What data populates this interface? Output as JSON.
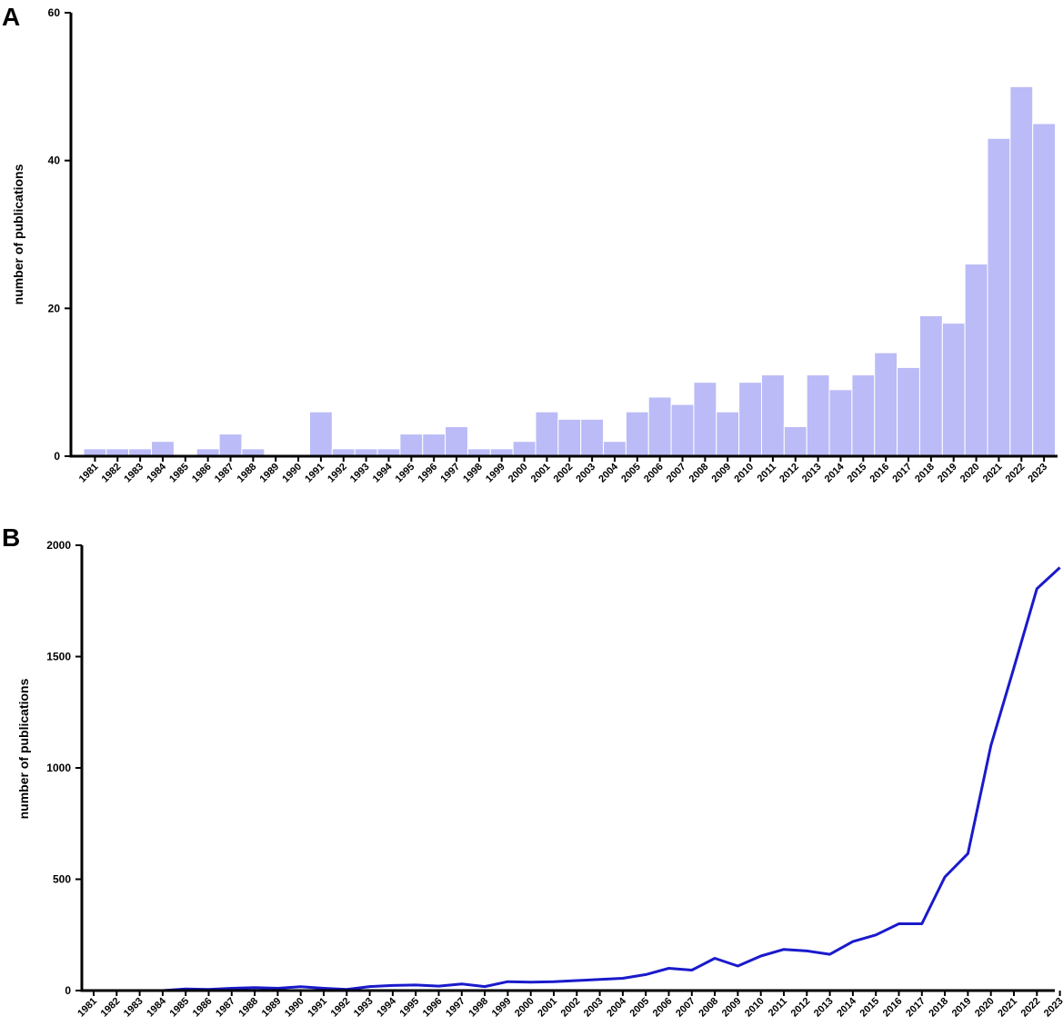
{
  "chart_data": [
    {
      "panel": "A",
      "type": "bar",
      "ylabel": "number of publications",
      "xlabel": "",
      "ylim": [
        0,
        60
      ],
      "yticks": [
        0,
        20,
        40,
        60
      ],
      "categories": [
        "1981",
        "1982",
        "1983",
        "1984",
        "1985",
        "1986",
        "1987",
        "1988",
        "1989",
        "1990",
        "1991",
        "1992",
        "1993",
        "1994",
        "1995",
        "1996",
        "1997",
        "1998",
        "1999",
        "2000",
        "2001",
        "2002",
        "2003",
        "2004",
        "2005",
        "2006",
        "2007",
        "2008",
        "2009",
        "2010",
        "2011",
        "2012",
        "2013",
        "2014",
        "2015",
        "2016",
        "2017",
        "2018",
        "2019",
        "2020",
        "2021",
        "2022",
        "2023"
      ],
      "values": [
        1,
        1,
        1,
        2,
        0,
        1,
        3,
        1,
        0,
        0,
        6,
        1,
        1,
        1,
        3,
        3,
        4,
        1,
        1,
        2,
        6,
        5,
        5,
        2,
        6,
        8,
        7,
        10,
        6,
        10,
        11,
        4,
        11,
        9,
        11,
        14,
        12,
        19,
        18,
        26,
        43,
        50,
        45
      ],
      "color": "#bbbbf7"
    },
    {
      "panel": "B",
      "type": "line",
      "ylabel": "number of publications",
      "xlabel": "",
      "ylim": [
        0,
        2000
      ],
      "yticks": [
        0,
        500,
        1000,
        1500,
        2000
      ],
      "categories": [
        "1981",
        "1982",
        "1983",
        "1984",
        "1985",
        "1986",
        "1987",
        "1988",
        "1989",
        "1990",
        "1991",
        "1992",
        "1993",
        "1994",
        "1995",
        "1996",
        "1997",
        "1998",
        "1999",
        "2000",
        "2001",
        "2002",
        "2003",
        "2004",
        "2005",
        "2006",
        "2007",
        "2008",
        "2009",
        "2010",
        "2011",
        "2012",
        "2013",
        "2014",
        "2015",
        "2016",
        "2017",
        "2018",
        "2019",
        "2020",
        "2021",
        "2022",
        "2023"
      ],
      "values": [
        0,
        0,
        0,
        0,
        7,
        5,
        10,
        13,
        10,
        17,
        10,
        5,
        18,
        23,
        25,
        20,
        30,
        18,
        40,
        38,
        40,
        45,
        50,
        55,
        72,
        100,
        92,
        145,
        110,
        155,
        185,
        178,
        163,
        220,
        250,
        300,
        300,
        510,
        615,
        1100,
        1450,
        1805,
        1900
      ],
      "color": "#1a1acc"
    }
  ]
}
